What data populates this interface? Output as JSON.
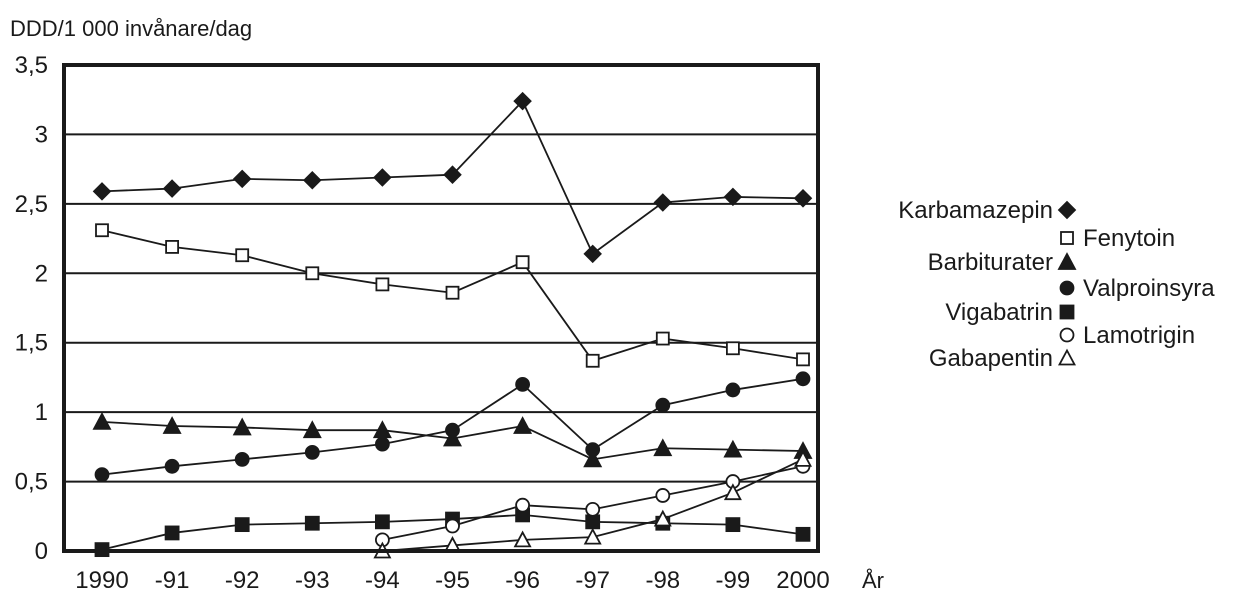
{
  "chart_data": {
    "type": "line",
    "ylabel": "DDD/1 000 invånare/dag",
    "xlabel": "År",
    "categories": [
      "1990",
      "-91",
      "-92",
      "-93",
      "-94",
      "-95",
      "-96",
      "-97",
      "-98",
      "-99",
      "2000"
    ],
    "ylim": [
      0,
      3.5
    ],
    "yticks": [
      {
        "value": 0,
        "label": "0"
      },
      {
        "value": 0.5,
        "label": "0,5"
      },
      {
        "value": 1,
        "label": "1"
      },
      {
        "value": 1.5,
        "label": "1,5"
      },
      {
        "value": 2,
        "label": "2"
      },
      {
        "value": 2.5,
        "label": "2,5"
      },
      {
        "value": 3,
        "label": "3"
      },
      {
        "value": 3.5,
        "label": "3,5"
      }
    ],
    "grid": "horizontal",
    "legend_position": "right",
    "series": [
      {
        "name": "Karbamazepin",
        "marker": "diamond-filled",
        "values": [
          2.59,
          2.61,
          2.68,
          2.67,
          2.69,
          2.71,
          3.24,
          2.14,
          2.51,
          2.55,
          2.54
        ]
      },
      {
        "name": "Fenytoin",
        "marker": "square-open",
        "values": [
          2.31,
          2.19,
          2.13,
          2.0,
          1.92,
          1.86,
          2.08,
          1.37,
          1.53,
          1.46,
          1.38
        ]
      },
      {
        "name": "Barbiturater",
        "marker": "triangle-filled",
        "values": [
          0.93,
          0.9,
          0.89,
          0.87,
          0.87,
          0.81,
          0.9,
          0.66,
          0.74,
          0.73,
          0.72
        ]
      },
      {
        "name": "Valproinsyra",
        "marker": "circle-filled",
        "values": [
          0.55,
          0.61,
          0.66,
          0.71,
          0.77,
          0.87,
          1.2,
          0.73,
          1.05,
          1.16,
          1.24
        ]
      },
      {
        "name": "Vigabatrin",
        "marker": "square-filled",
        "values": [
          0.01,
          0.13,
          0.19,
          0.2,
          0.21,
          0.23,
          0.26,
          0.21,
          0.2,
          0.19,
          0.12
        ]
      },
      {
        "name": "Lamotrigin",
        "marker": "circle-open",
        "values": [
          null,
          null,
          null,
          null,
          0.08,
          0.18,
          0.33,
          0.3,
          0.4,
          0.5,
          0.61
        ]
      },
      {
        "name": "Gabapentin",
        "marker": "triangle-open",
        "values": [
          null,
          null,
          null,
          null,
          0.0,
          0.04,
          0.08,
          0.1,
          0.23,
          0.42,
          0.66
        ]
      }
    ]
  }
}
